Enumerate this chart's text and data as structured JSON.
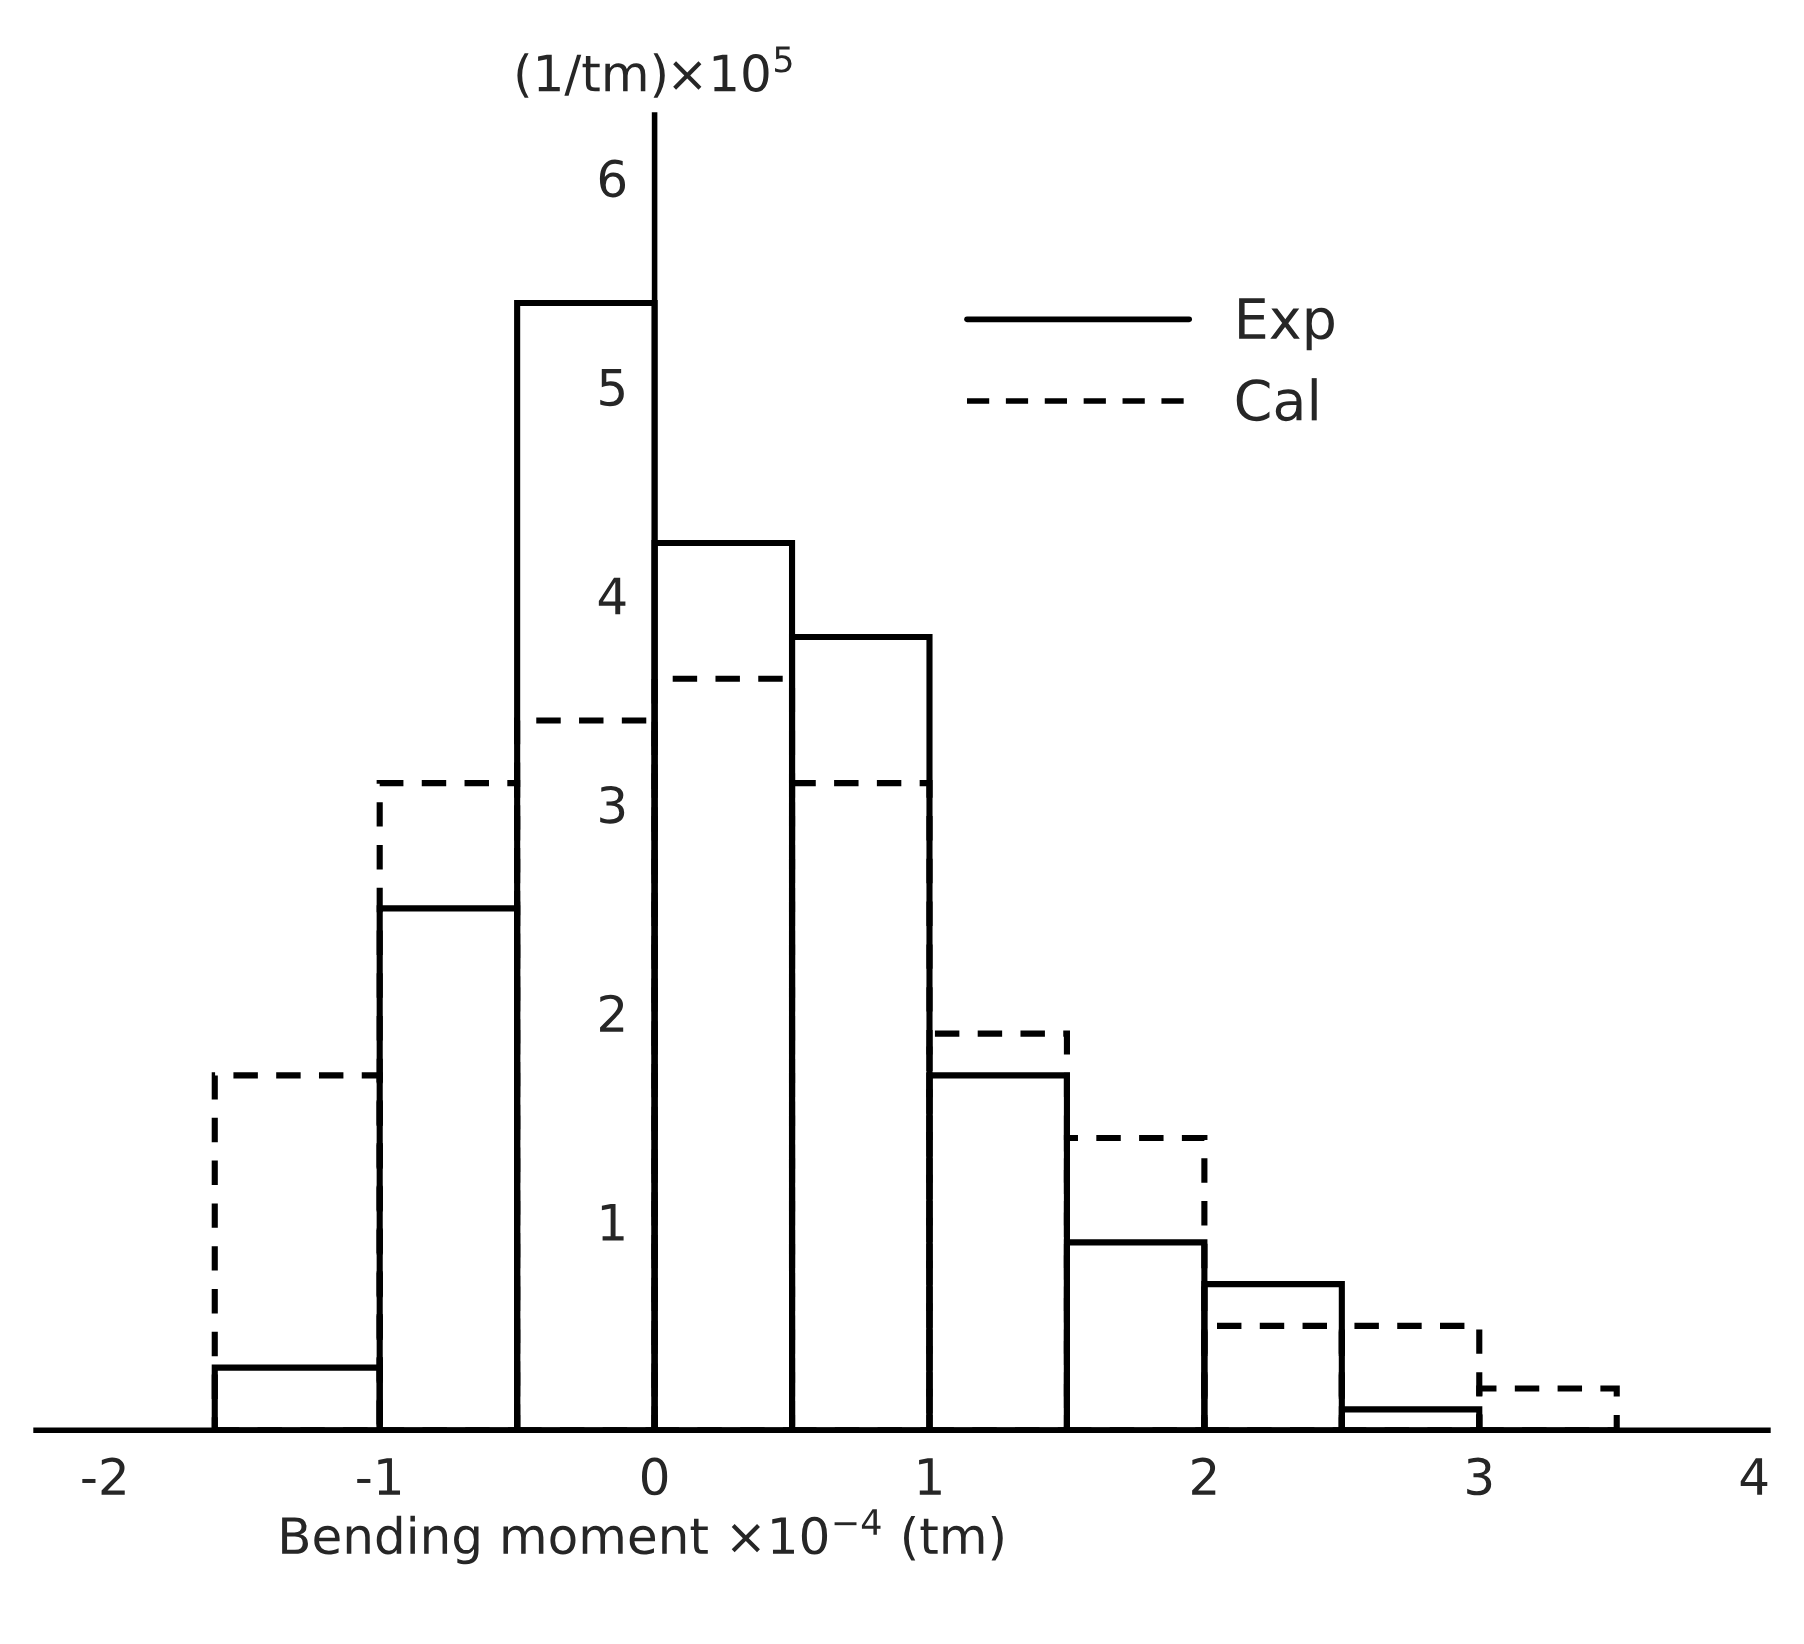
{
  "chart_data": {
    "type": "histogram",
    "ylabel": "(1/tm)×10$^{5}$",
    "xlabel": "Bending moment ×10$^{−4}$ (tm)",
    "bins": [
      -1.6,
      -1.0,
      -0.5,
      0,
      0.5,
      1.0,
      1.5,
      2.0,
      2.5,
      3.0,
      3.5
    ],
    "series": [
      {
        "name": "Exp",
        "color": "#000000",
        "line_style": "solid",
        "values": [
          0.3,
          2.5,
          5.4,
          4.25,
          3.8,
          1.7,
          0.9,
          0.7,
          0.1,
          0
        ]
      },
      {
        "name": "Cal",
        "color": "#000000",
        "line_style": "dashed",
        "values": [
          1.7,
          3.1,
          3.4,
          3.6,
          3.1,
          1.9,
          1.4,
          0.5,
          0.5,
          0.2
        ]
      }
    ],
    "xlim": [
      -2.25,
      4.05
    ],
    "ylim": [
      0,
      6.3
    ],
    "xticks": [
      -2,
      -1,
      0,
      1,
      2,
      3,
      4
    ],
    "yticks": [
      1,
      2,
      3,
      4,
      5,
      6
    ],
    "grid": false,
    "legend": "top right"
  }
}
